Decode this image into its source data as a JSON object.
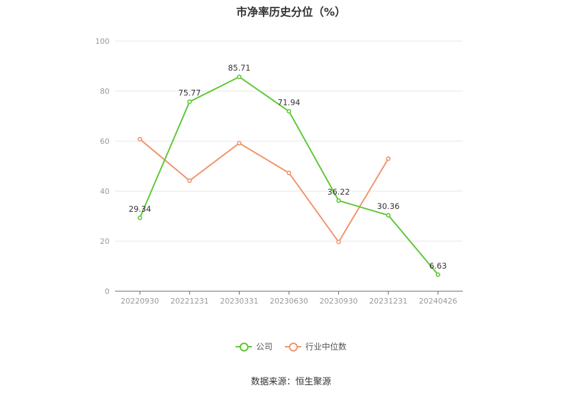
{
  "chart_data": {
    "type": "line",
    "title": "市净率历史分位（%）",
    "categories": [
      "20220930",
      "20221231",
      "20230331",
      "20230630",
      "20230930",
      "20231231",
      "20240426"
    ],
    "ylim": [
      0,
      100
    ],
    "yticks": [
      0,
      20,
      40,
      60,
      80,
      100
    ],
    "grid": true,
    "legend_position": "bottom",
    "series": [
      {
        "name": "公司",
        "color": "#5dc733",
        "values": [
          29.34,
          75.77,
          85.71,
          71.94,
          36.22,
          30.36,
          6.63
        ],
        "labels": [
          "29.34",
          "75.77",
          "85.71",
          "71.94",
          "36.22",
          "30.36",
          "6.63"
        ]
      },
      {
        "name": "行业中位数",
        "color": "#f0936a",
        "values": [
          60.8,
          44.2,
          59.2,
          47.3,
          19.7,
          53.0,
          null
        ]
      }
    ]
  },
  "footer": {
    "source": "数据来源：恒生聚源"
  }
}
